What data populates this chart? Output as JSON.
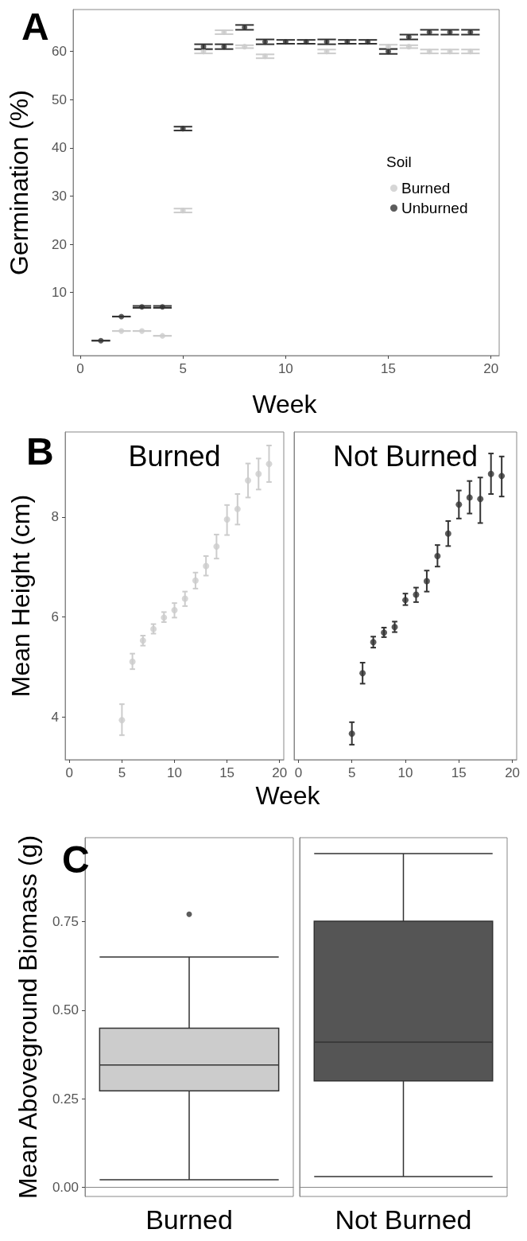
{
  "chart_data": [
    {
      "type": "scatter",
      "title": "A",
      "xlabel": "Week",
      "ylabel": "Germination (%)",
      "legend_title": "Soil",
      "legend": "right",
      "marker": "circle",
      "xlim": [
        -0.35,
        20.4
      ],
      "xticks": [
        0,
        5,
        10,
        15,
        20
      ],
      "ylim": [
        -3.1,
        68.7
      ],
      "yticks": [
        10,
        20,
        30,
        40,
        50,
        60
      ],
      "x": [
        1,
        2,
        3,
        4,
        5,
        6,
        7,
        8,
        9,
        10,
        11,
        12,
        13,
        14,
        15,
        16,
        17,
        18,
        19
      ],
      "series": [
        {
          "name": "Burned",
          "color": "#cccccc",
          "values": [
            null,
            2,
            2,
            1,
            27,
            60,
            64,
            61,
            59,
            null,
            null,
            60,
            null,
            null,
            61,
            61,
            60,
            60,
            60
          ],
          "errors": [
            null,
            0,
            0,
            0,
            0.4,
            0.4,
            0.4,
            0.3,
            0.4,
            null,
            null,
            0.4,
            null,
            null,
            0.4,
            0.3,
            0.4,
            0.4,
            0.4
          ]
        },
        {
          "name": "Unburned",
          "color": "#333333",
          "values": [
            0,
            5,
            7,
            7,
            44,
            61,
            61,
            65,
            62,
            62,
            62,
            62,
            62,
            62,
            60,
            63,
            64,
            64,
            64
          ],
          "errors": [
            0,
            0,
            0.2,
            0.2,
            0.4,
            0.5,
            0.5,
            0.5,
            0.5,
            0.4,
            0.4,
            0.5,
            0.4,
            0.4,
            0.5,
            0.5,
            0.5,
            0.5,
            0.5
          ]
        }
      ]
    },
    {
      "type": "scatter",
      "title": "B",
      "subtitle": "Burned",
      "xlabel": "Week",
      "ylabel": "Mean Height (cm)",
      "marker": "circle",
      "xlim": [
        -0.4,
        20.4
      ],
      "xticks": [
        0,
        5,
        10,
        15,
        20
      ],
      "ylim": [
        3.15,
        9.7
      ],
      "yticks": [
        4,
        6,
        8
      ],
      "x": [
        5,
        6,
        7,
        8,
        9,
        10,
        11,
        12,
        13,
        14,
        15,
        16,
        17,
        18,
        19
      ],
      "series": [
        {
          "color": "#cccccc",
          "values": [
            3.94,
            5.11,
            5.53,
            5.76,
            5.99,
            6.14,
            6.37,
            6.73,
            7.02,
            7.41,
            7.95,
            8.16,
            8.73,
            8.86,
            9.06
          ],
          "errors": [
            [
              3.64,
              4.26
            ],
            [
              4.96,
              5.27
            ],
            [
              5.43,
              5.63
            ],
            [
              5.67,
              5.86
            ],
            [
              5.9,
              6.1
            ],
            [
              5.99,
              6.28
            ],
            [
              6.22,
              6.51
            ],
            [
              6.57,
              6.89
            ],
            [
              6.83,
              7.22
            ],
            [
              7.17,
              7.65
            ],
            [
              7.64,
              8.24
            ],
            [
              7.85,
              8.46
            ],
            [
              8.39,
              9.07
            ],
            [
              8.55,
              9.17
            ],
            [
              8.7,
              9.43
            ]
          ]
        }
      ]
    },
    {
      "type": "scatter",
      "subtitle": "Not Burned",
      "marker": "circle",
      "tick_labels": "x",
      "xlim": [
        -0.4,
        20.4
      ],
      "xticks": [
        0,
        5,
        10,
        15,
        20
      ],
      "ylim": [
        3.15,
        9.7
      ],
      "x": [
        5,
        6,
        7,
        8,
        9,
        10,
        11,
        12,
        13,
        14,
        15,
        16,
        17,
        18,
        19
      ],
      "series": [
        {
          "color": "#333333",
          "values": [
            3.67,
            4.88,
            5.5,
            5.69,
            5.8,
            6.34,
            6.45,
            6.72,
            7.22,
            7.67,
            8.25,
            8.39,
            8.36,
            8.86,
            8.82
          ],
          "errors": [
            [
              3.45,
              3.9
            ],
            [
              4.67,
              5.09
            ],
            [
              5.39,
              5.61
            ],
            [
              5.6,
              5.79
            ],
            [
              5.7,
              5.91
            ],
            [
              6.24,
              6.47
            ],
            [
              6.3,
              6.59
            ],
            [
              6.51,
              6.93
            ],
            [
              7.01,
              7.44
            ],
            [
              7.42,
              7.92
            ],
            [
              7.97,
              8.53
            ],
            [
              8.07,
              8.72
            ],
            [
              7.88,
              8.79
            ],
            [
              8.46,
              9.27
            ],
            [
              8.41,
              9.21
            ]
          ]
        }
      ]
    },
    {
      "type": "box",
      "title": "C",
      "ylabel": "Mean Aboveground Biomass (g)",
      "categories": [
        "Burned",
        "Not Burned"
      ],
      "colors": [
        "#cccccc",
        "#555555"
      ],
      "ylim": [
        -0.026,
        0.987
      ],
      "yticks": [
        {
          "value": 0,
          "label": "0.00"
        },
        {
          "value": 0.25,
          "label": "0.25"
        },
        {
          "value": 0.5,
          "label": "0.50"
        },
        {
          "value": 0.75,
          "label": "0.75"
        }
      ],
      "boxes": [
        {
          "low": 0.021,
          "q1": 0.272,
          "median": 0.345,
          "q3": 0.449,
          "high": 0.65,
          "outliers": [
            0.771
          ]
        },
        {
          "low": 0.03,
          "q1": 0.3,
          "median": 0.41,
          "q3": 0.751,
          "high": 0.942
        }
      ]
    }
  ]
}
